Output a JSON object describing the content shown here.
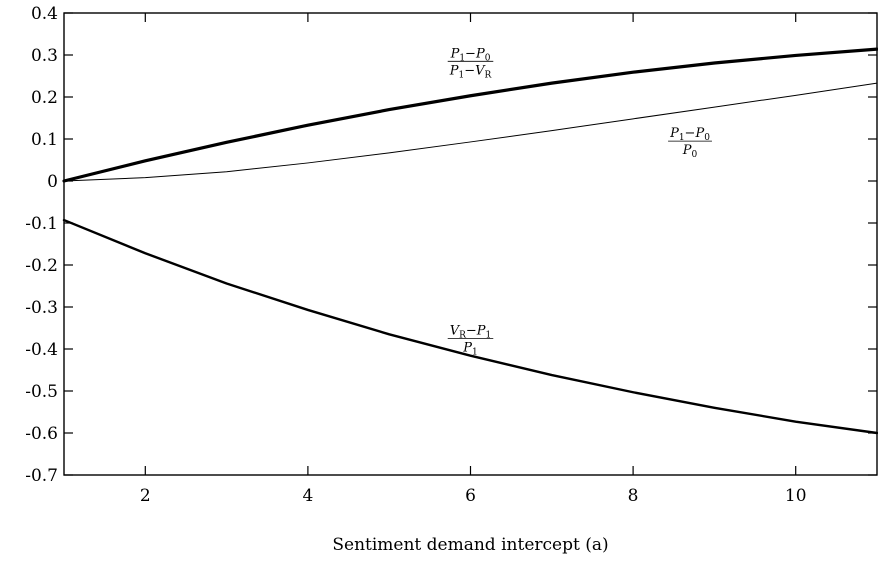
{
  "chart_data": {
    "type": "line",
    "title": "",
    "xlabel": "Sentiment demand intercept (a)",
    "ylabel": "",
    "xlim": [
      1,
      11
    ],
    "ylim": [
      -0.7,
      0.4
    ],
    "xticks": [
      2,
      4,
      6,
      8,
      10
    ],
    "yticks": [
      0.4,
      0.3,
      0.2,
      0.1,
      0,
      -0.1,
      -0.2,
      -0.3,
      -0.4,
      -0.5,
      -0.6,
      -0.7
    ],
    "ytick_labels": [
      "0.4",
      "0.3",
      "0.2",
      "0.1",
      "0",
      "-0.1",
      "-0.2",
      "-0.3",
      "-0.4",
      "-0.5",
      "-0.6",
      "-0.7"
    ],
    "xtick_labels": [
      "2",
      "4",
      "6",
      "8",
      "10"
    ],
    "grid": false,
    "legend": "none",
    "series": [
      {
        "key": "s1",
        "stroke": "#000000",
        "weight": "bold",
        "x": [
          1,
          2,
          3,
          4,
          5,
          6,
          7,
          8,
          9,
          10,
          11
        ],
        "y": [
          0.0,
          0.048,
          0.092,
          0.133,
          0.17,
          0.203,
          0.233,
          0.259,
          0.281,
          0.299,
          0.314
        ]
      },
      {
        "key": "s2",
        "stroke": "#000000",
        "weight": "thin",
        "x": [
          1,
          2,
          3,
          4,
          5,
          6,
          7,
          8,
          9,
          10,
          11
        ],
        "y": [
          0.0,
          0.008,
          0.022,
          0.043,
          0.067,
          0.093,
          0.12,
          0.148,
          0.176,
          0.204,
          0.233
        ]
      },
      {
        "key": "s3",
        "stroke": "#000000",
        "weight": "medium",
        "x": [
          1,
          2,
          3,
          4,
          5,
          6,
          7,
          8,
          9,
          10,
          11
        ],
        "y": [
          -0.093,
          -0.172,
          -0.244,
          -0.307,
          -0.365,
          -0.416,
          -0.462,
          -0.503,
          -0.54,
          -0.573,
          -0.6
        ]
      }
    ],
    "annotations": [
      {
        "series": "s1",
        "at": [
          6,
          0.285
        ],
        "numerator": [
          "P",
          "1",
          "−",
          "P",
          "0"
        ],
        "denominator": [
          "P",
          "1",
          "−",
          "V",
          "R"
        ]
      },
      {
        "series": "s2",
        "at": [
          8.7,
          0.095
        ],
        "numerator": [
          "P",
          "1",
          "−",
          "P",
          "0"
        ],
        "denominator": [
          "P",
          "0",
          "",
          "",
          ""
        ]
      },
      {
        "series": "s3",
        "at": [
          6,
          -0.375
        ],
        "numerator": [
          "V",
          "R",
          "−",
          "P",
          "1"
        ],
        "denominator": [
          "P",
          "1",
          "",
          "",
          ""
        ]
      }
    ]
  }
}
